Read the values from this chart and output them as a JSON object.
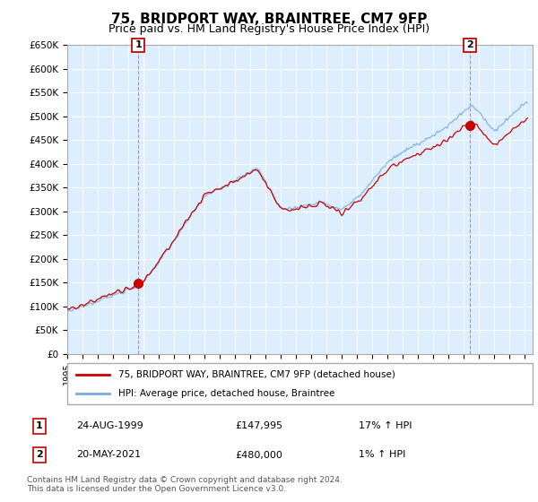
{
  "title": "75, BRIDPORT WAY, BRAINTREE, CM7 9FP",
  "subtitle": "Price paid vs. HM Land Registry's House Price Index (HPI)",
  "ylim": [
    0,
    650000
  ],
  "xlim_start": 1995.0,
  "xlim_end": 2025.5,
  "sale1_year": 1999.65,
  "sale1_price": 147995,
  "sale1_label": "1",
  "sale1_date": "24-AUG-1999",
  "sale1_price_str": "£147,995",
  "sale1_hpi": "17% ↑ HPI",
  "sale2_year": 2021.38,
  "sale2_price": 480000,
  "sale2_label": "2",
  "sale2_date": "20-MAY-2021",
  "sale2_price_str": "£480,000",
  "sale2_hpi": "1% ↑ HPI",
  "red_color": "#cc0000",
  "blue_color": "#7aaadd",
  "plot_bg_color": "#ddeeff",
  "grid_color": "#ffffff",
  "bg_color": "#ffffff",
  "legend_line1": "75, BRIDPORT WAY, BRAINTREE, CM7 9FP (detached house)",
  "legend_line2": "HPI: Average price, detached house, Braintree",
  "footnote": "Contains HM Land Registry data © Crown copyright and database right 2024.\nThis data is licensed under the Open Government Licence v3.0.",
  "title_fontsize": 11,
  "subtitle_fontsize": 9
}
